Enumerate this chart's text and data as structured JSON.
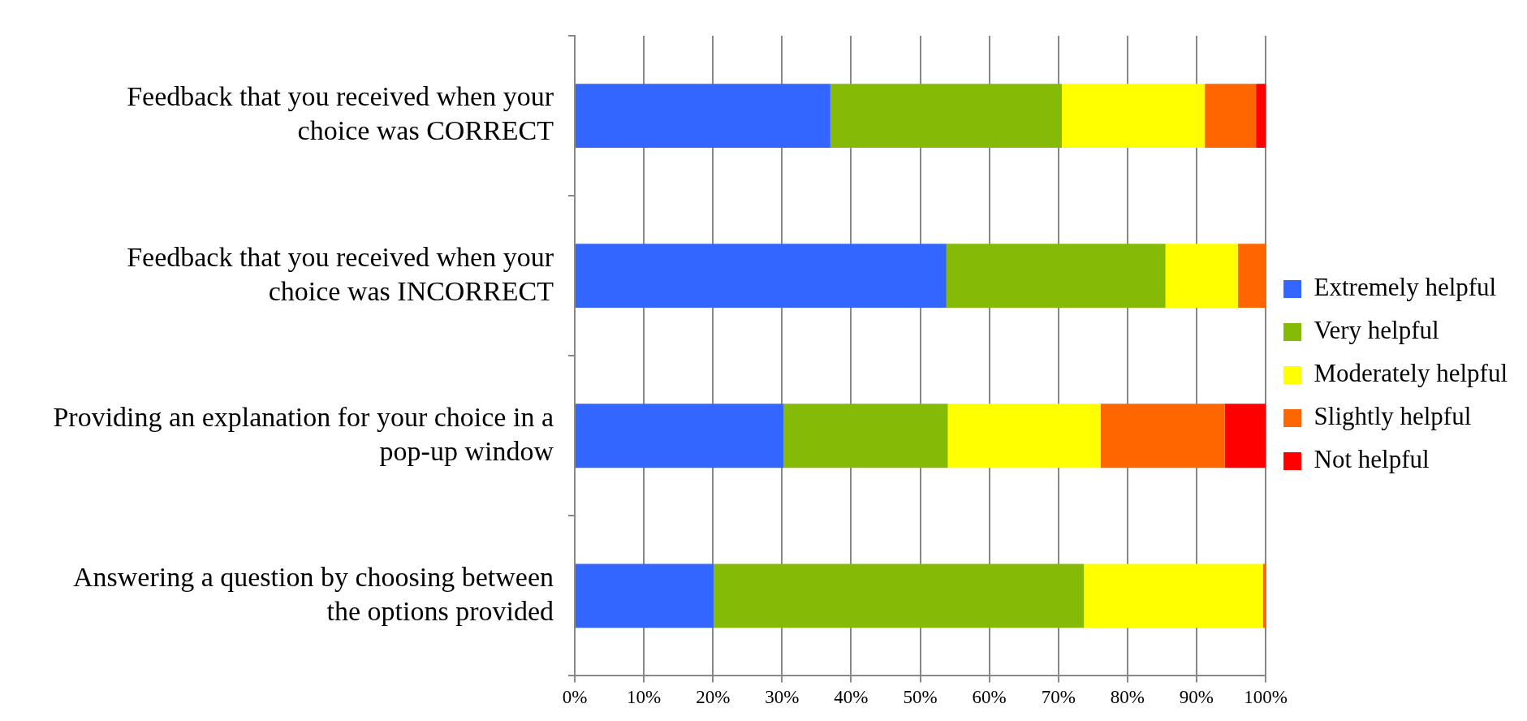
{
  "chart_data": {
    "type": "bar",
    "orientation": "horizontal",
    "stacked": true,
    "categories": [
      "Feedback that you received when your choice was CORRECT",
      "Feedback that you received when your choice was INCORRECT",
      "Providing an explanation for your choice in a pop-up window",
      "Answering a question by choosing between the options provided"
    ],
    "series": [
      {
        "name": "Extremely helpful",
        "color": "#3366ff",
        "values": [
          37,
          53.8,
          30.2,
          20.1
        ]
      },
      {
        "name": "Very helpful",
        "color": "#85bb06",
        "values": [
          33.5,
          31.7,
          23.8,
          53.6
        ]
      },
      {
        "name": "Moderately helpful",
        "color": "#ffff00",
        "values": [
          20.7,
          10.5,
          22.1,
          25.9
        ]
      },
      {
        "name": "Slightly helpful",
        "color": "#ff6600",
        "values": [
          7.4,
          4,
          18,
          0.4
        ]
      },
      {
        "name": "Not helpful",
        "color": "#ff0000",
        "values": [
          1.4,
          0,
          5.9,
          0
        ]
      }
    ],
    "xlim": [
      0,
      100
    ],
    "xticks": [
      {
        "value": 0,
        "label": "0%"
      },
      {
        "value": 10,
        "label": "10%"
      },
      {
        "value": 20,
        "label": "20%"
      },
      {
        "value": 30,
        "label": "30%"
      },
      {
        "value": 40,
        "label": "40%"
      },
      {
        "value": 50,
        "label": "50%"
      },
      {
        "value": 60,
        "label": "60%"
      },
      {
        "value": 70,
        "label": "70%"
      },
      {
        "value": 80,
        "label": "80%"
      },
      {
        "value": 90,
        "label": "90%"
      },
      {
        "value": 100,
        "label": "100%"
      }
    ],
    "grid": "x",
    "legend": "right"
  }
}
